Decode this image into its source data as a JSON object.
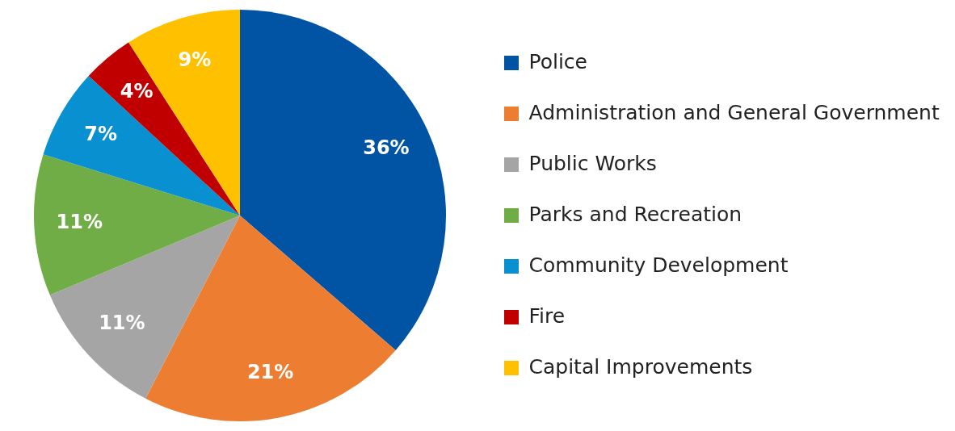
{
  "chart_data": {
    "type": "pie",
    "categories": [
      "Police",
      "Administration and General Government",
      "Public Works",
      "Parks and Recreation",
      "Community Development",
      "Fire",
      "Capital Improvements"
    ],
    "values": [
      36,
      21,
      11,
      11,
      7,
      4,
      9
    ],
    "colors": [
      "#0153a4",
      "#ed7d31",
      "#a5a5a5",
      "#70ad47",
      "#0990d0",
      "#c00000",
      "#ffc000"
    ],
    "value_labels": [
      "36%",
      "21%",
      "11%",
      "11%",
      "7%",
      "4%",
      "9%"
    ],
    "legend": "right"
  }
}
